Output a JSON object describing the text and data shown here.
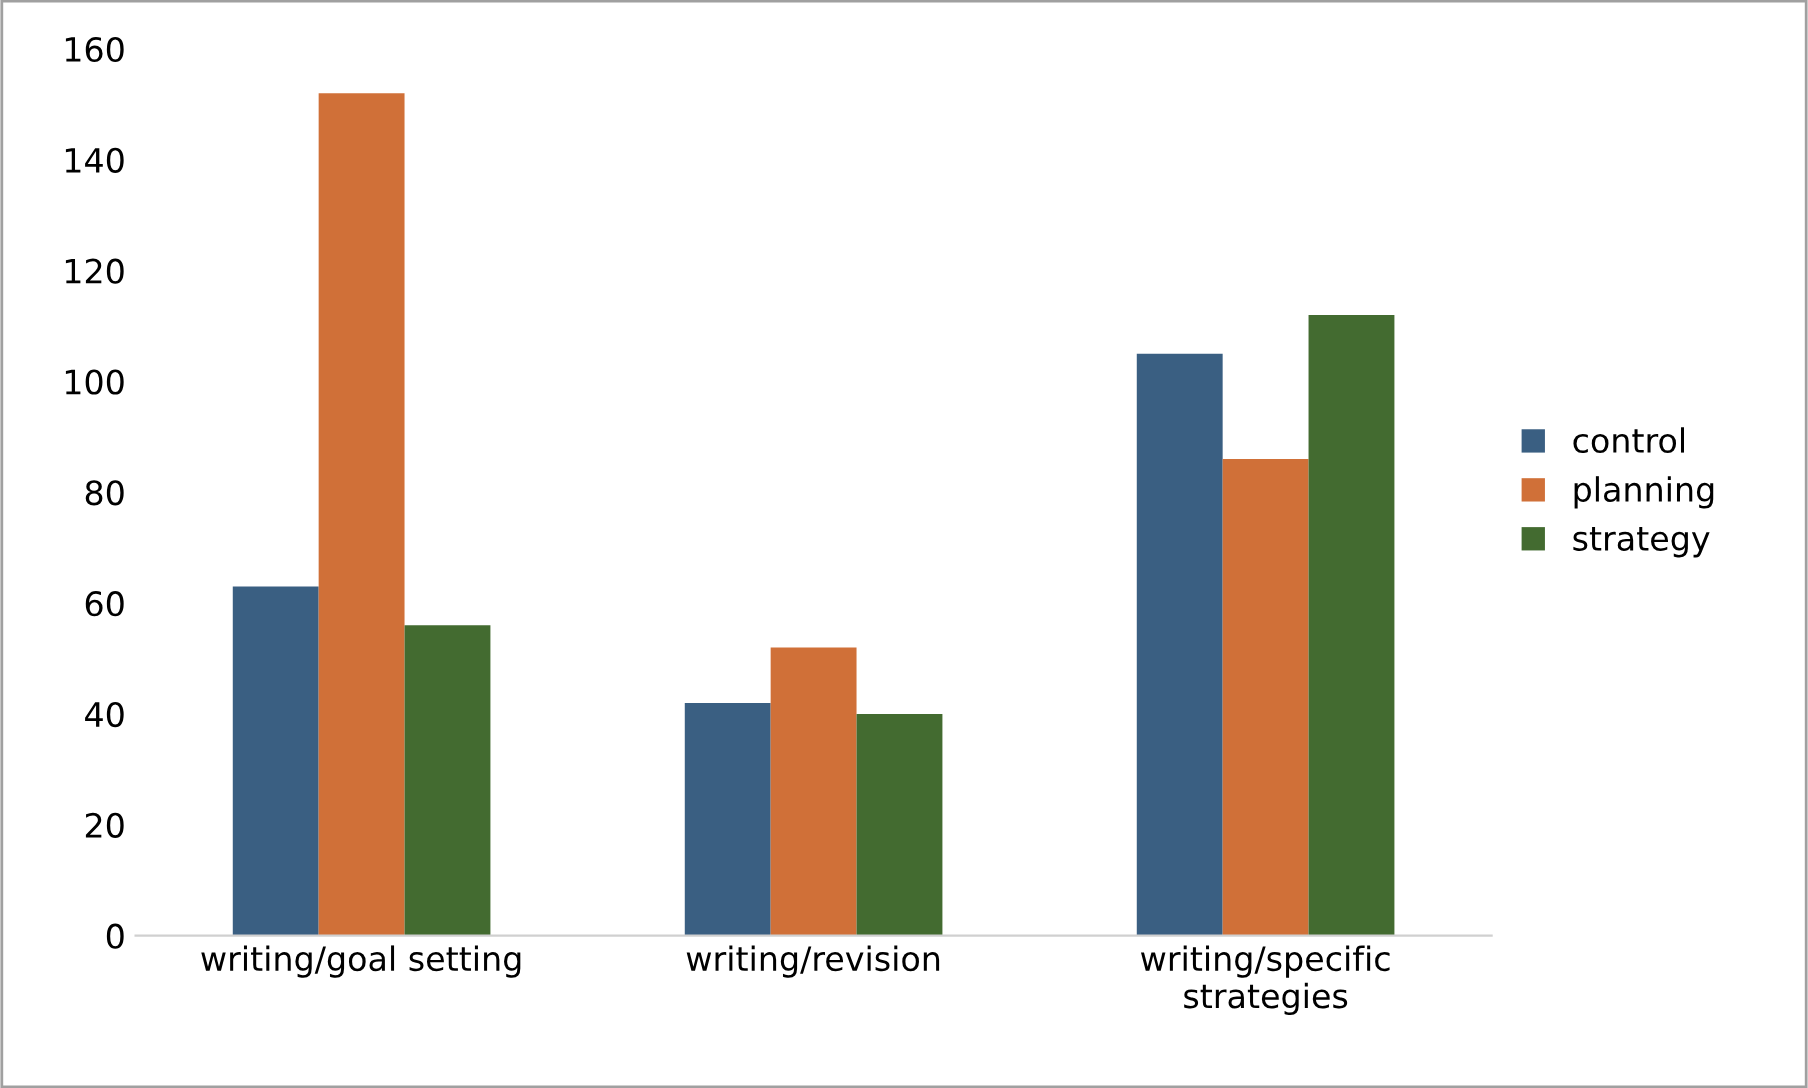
{
  "chart_data": {
    "type": "bar",
    "categories": [
      "writing/goal setting",
      "writing/revision",
      "writing/specific\nstrategies"
    ],
    "series": [
      {
        "name": "control",
        "color": "#3a5f82",
        "values": [
          63,
          42,
          105
        ]
      },
      {
        "name": "planning",
        "color": "#d07038",
        "values": [
          152,
          52,
          86
        ]
      },
      {
        "name": "strategy",
        "color": "#436b30",
        "values": [
          56,
          40,
          112
        ]
      }
    ],
    "ylim": [
      0,
      160
    ],
    "yticks": [
      0,
      20,
      40,
      60,
      80,
      100,
      120,
      140,
      160
    ],
    "grid": false,
    "legend": "right"
  }
}
